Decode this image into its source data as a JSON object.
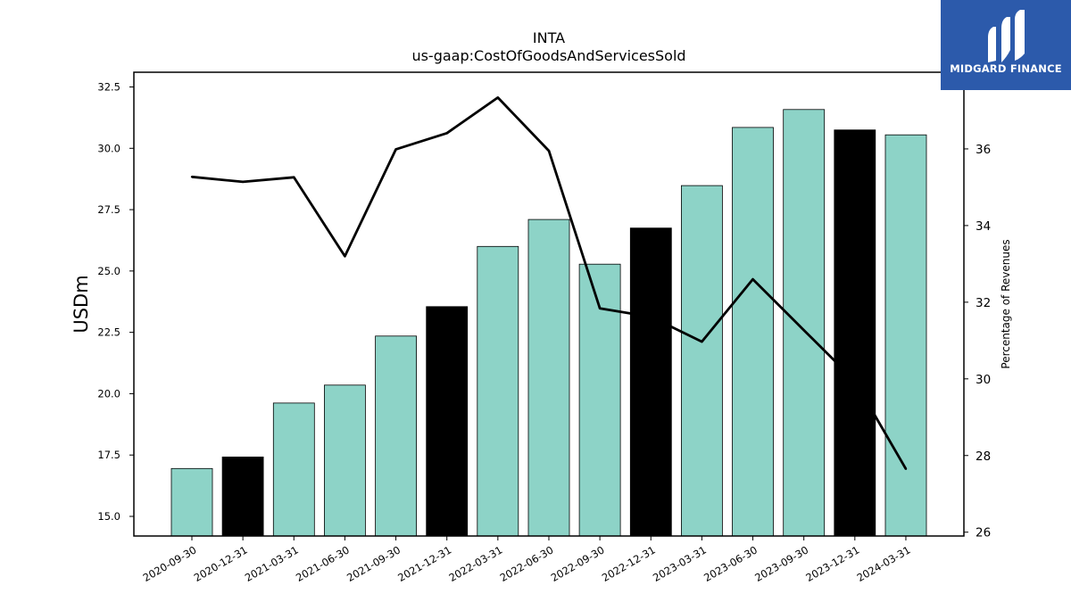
{
  "brand": {
    "name": "MIDGARD FINANCE",
    "color": "#2c5aab"
  },
  "chart_data": {
    "type": "bar",
    "title": "INTA",
    "subtitle": "us-gaap:CostOfGoodsAndServicesSold",
    "ylabel": "USDm",
    "y2label": "Percentage of Revenues",
    "ylim": [
      14.2,
      33.1
    ],
    "y2lim": [
      25.9,
      38.0
    ],
    "yticks": [
      15.0,
      17.5,
      20.0,
      22.5,
      25.0,
      27.5,
      30.0,
      32.5
    ],
    "y2ticks": [
      26,
      28,
      30,
      32,
      34,
      36
    ],
    "categories": [
      "2020-09-30",
      "2020-12-31",
      "2021-03-31",
      "2021-06-30",
      "2021-09-30",
      "2021-12-31",
      "2022-03-31",
      "2022-06-30",
      "2022-09-30",
      "2022-12-31",
      "2023-03-31",
      "2023-06-30",
      "2023-09-30",
      "2023-12-31",
      "2024-03-31"
    ],
    "series": [
      {
        "type": "bar",
        "axis": "left",
        "values": [
          16.95,
          17.42,
          19.62,
          20.35,
          22.35,
          23.55,
          26.0,
          27.1,
          25.28,
          26.75,
          28.48,
          30.85,
          31.58,
          30.75,
          30.55
        ],
        "colors": [
          "#8dd3c7",
          "#000000",
          "#8dd3c7",
          "#8dd3c7",
          "#8dd3c7",
          "#000000",
          "#8dd3c7",
          "#8dd3c7",
          "#8dd3c7",
          "#000000",
          "#8dd3c7",
          "#8dd3c7",
          "#8dd3c7",
          "#000000",
          "#8dd3c7"
        ]
      },
      {
        "type": "line",
        "axis": "right",
        "color": "#000000",
        "values": [
          35.27,
          35.14,
          35.26,
          33.2,
          35.99,
          36.41,
          37.34,
          35.95,
          31.84,
          31.62,
          30.97,
          32.6,
          31.27,
          29.95,
          27.65
        ]
      }
    ],
    "grid": false,
    "legend": "none"
  }
}
